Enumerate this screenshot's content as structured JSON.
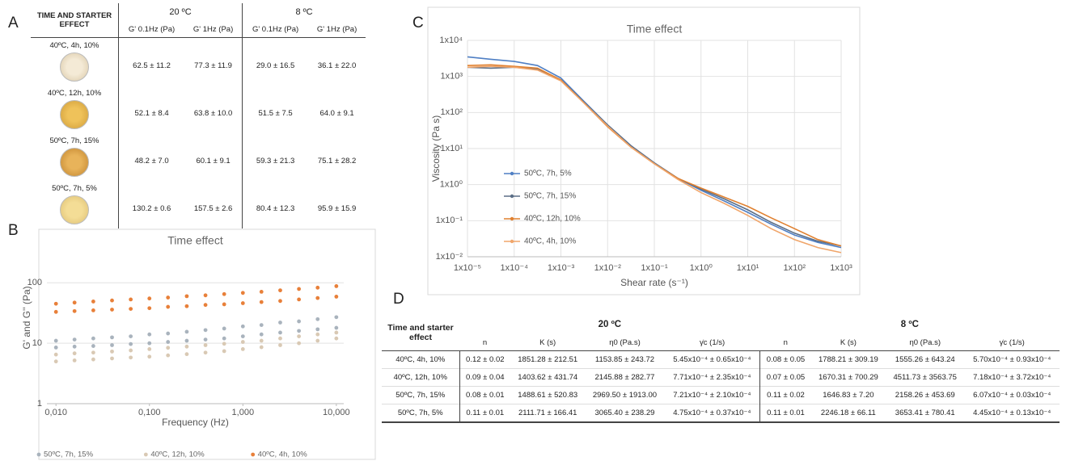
{
  "panels": [
    "A",
    "B",
    "C",
    "D"
  ],
  "table_a": {
    "header": "TIME AND STARTER EFFECT",
    "groups": [
      "20 ºC",
      "8 ºC"
    ],
    "columns": [
      "G' 0.1Hz (Pa)",
      "G' 1Hz (Pa)",
      "G' 0.1Hz (Pa)",
      "G' 1Hz (Pa)"
    ],
    "rows": [
      {
        "label": "40ºC, 4h, 10%",
        "cells": [
          "62.5 ± 11.2",
          "77.3 ± 11.9",
          "29.0 ± 16.5",
          "36.1 ± 22.0"
        ]
      },
      {
        "label": "40ºC, 12h, 10%",
        "cells": [
          "52.1 ± 8.4",
          "63.8 ± 10.0",
          "51.5 ± 7.5",
          "64.0 ± 9.1"
        ]
      },
      {
        "label": "50ºC, 7h, 15%",
        "cells": [
          "48.2 ± 7.0",
          "60.1 ± 9.1",
          "59.3 ± 21.3",
          "75.1 ± 28.2"
        ]
      },
      {
        "label": "50ºC, 7h, 5%",
        "cells": [
          "130.2 ± 0.6",
          "157.5 ± 2.6",
          "80.4 ± 12.3",
          "95.9 ± 15.9"
        ]
      }
    ]
  },
  "table_d": {
    "header": "Time and starter effect",
    "groups": [
      "20 ºC",
      "8 ºC"
    ],
    "columns": [
      "n",
      "K (s)",
      "η0 (Pa.s)",
      "γ̇c (1/s)",
      "n",
      "K (s)",
      "η0 (Pa.s)",
      "γ̇c (1/s)"
    ],
    "rows": [
      {
        "label": "40ºC, 4h, 10%",
        "cells": [
          "0.12 ± 0.02",
          "1851.28 ± 212.51",
          "1153.85 ± 243.72",
          "5.45x10⁻⁴ ± 0.65x10⁻⁴",
          "0.08 ± 0.05",
          "1788.21 ± 309.19",
          "1555.26 ± 643.24",
          "5.70x10⁻⁴ ± 0.93x10⁻⁴"
        ]
      },
      {
        "label": "40ºC, 12h, 10%",
        "cells": [
          "0.09 ± 0.04",
          "1403.62 ± 431.74",
          "2145.88 ± 282.77",
          "7.71x10⁻⁴ ± 2.35x10⁻⁴",
          "0.07 ± 0.05",
          "1670.31 ± 700.29",
          "4511.73 ± 3563.75",
          "7.18x10⁻⁴ ± 3.72x10⁻⁴"
        ]
      },
      {
        "label": "50ºC, 7h, 15%",
        "cells": [
          "0.08 ± 0.01",
          "1488.61 ± 520.83",
          "2969.50 ± 1913.00",
          "7.21x10⁻⁴ ± 2.10x10⁻⁴",
          "0.11 ± 0.02",
          "1646.83 ± 7.20",
          "2158.26 ± 453.69",
          "6.07x10⁻⁴ ± 0.03x10⁻⁴"
        ]
      },
      {
        "label": "50ºC, 7h, 5%",
        "cells": [
          "0.11 ± 0.01",
          "2111.71 ± 166.41",
          "3065.40 ± 238.29",
          "4.75x10⁻⁴ ± 0.37x10⁻⁴",
          "0.11 ± 0.01",
          "2246.18 ± 66.11",
          "3653.41 ± 780.41",
          "4.45x10⁻⁴ ± 0.13x10⁻⁴"
        ]
      }
    ]
  },
  "chart_data": [
    {
      "type": "scatter",
      "title": "Time effect",
      "x_label": "Frequency (Hz)",
      "y_label": "G' and G'' (Pa)",
      "log_x": true,
      "log_y": true,
      "grid": true,
      "legend": "bottom",
      "xlim": [
        0.008,
        12
      ],
      "ylim": [
        1,
        700
      ],
      "xticks": [
        {
          "value": 0.01,
          "label": "0,010"
        },
        {
          "value": 0.1,
          "label": "0,100"
        },
        {
          "value": 1,
          "label": "1,000"
        },
        {
          "value": 10,
          "label": "10,000"
        }
      ],
      "yticks": [
        1,
        10,
        100
      ],
      "x": [
        0.01,
        0.0158,
        0.0251,
        0.0398,
        0.0631,
        0.1,
        0.158,
        0.251,
        0.398,
        0.631,
        1,
        1.58,
        2.51,
        3.98,
        6.31,
        10
      ],
      "series": [
        {
          "name": "50ºC, 7h, 15%",
          "color": "#a9b3bd",
          "values": [
            11,
            11.5,
            12,
            12.5,
            13,
            14,
            14.5,
            15.5,
            16.5,
            17.5,
            19,
            20,
            22,
            23,
            25,
            27
          ],
          "values2": [
            8.5,
            8.8,
            9,
            9.3,
            9.7,
            10,
            10.5,
            11,
            11.5,
            12,
            13,
            14,
            15,
            16,
            17,
            18
          ]
        },
        {
          "name": "40ºC, 12h, 10%",
          "color": "#d9c9b4",
          "values": [
            6.5,
            6.8,
            7,
            7.3,
            7.6,
            8,
            8.4,
            8.8,
            9.3,
            9.8,
            10.5,
            11,
            12,
            13,
            14,
            15
          ],
          "values2": [
            5,
            5.2,
            5.4,
            5.6,
            5.8,
            6,
            6.3,
            6.6,
            7,
            7.4,
            8,
            8.6,
            9.3,
            10,
            11,
            12
          ]
        },
        {
          "name": "40ºC, 4h, 10%",
          "color": "#e8803a",
          "values": [
            45,
            47,
            49,
            51,
            53,
            55,
            57,
            60,
            62,
            65,
            68,
            71,
            75,
            79,
            83,
            88
          ],
          "values2": [
            33,
            34,
            35,
            36,
            37,
            38,
            40,
            41,
            43,
            44,
            46,
            48,
            50,
            53,
            56,
            59
          ]
        }
      ]
    },
    {
      "type": "line",
      "title": "Time effect",
      "x_label": "Shear rate (s⁻¹)",
      "y_label": "Viscosity (Pa s)",
      "log_x": true,
      "log_y": true,
      "grid": true,
      "legend": "left",
      "xlim": [
        1e-05,
        1000
      ],
      "ylim": [
        0.01,
        10000
      ],
      "xticks": [
        {
          "value": 1e-05,
          "label": "1x10⁻⁵"
        },
        {
          "value": 0.0001,
          "label": "1x10⁻⁴"
        },
        {
          "value": 0.001,
          "label": "1x10⁻³"
        },
        {
          "value": 0.01,
          "label": "1x10⁻²"
        },
        {
          "value": 0.1,
          "label": "1x10⁻¹"
        },
        {
          "value": 1,
          "label": "1x10⁰"
        },
        {
          "value": 10,
          "label": "1x10¹"
        },
        {
          "value": 100,
          "label": "1x10²"
        },
        {
          "value": 1000,
          "label": "1x10³"
        }
      ],
      "yticks": [
        {
          "value": 0.01,
          "label": "1x10⁻²"
        },
        {
          "value": 0.1,
          "label": "1x10⁻¹"
        },
        {
          "value": 1,
          "label": "1x10⁰"
        },
        {
          "value": 10,
          "label": "1x10¹"
        },
        {
          "value": 100,
          "label": "1x10²"
        },
        {
          "value": 1000,
          "label": "1x10³"
        },
        {
          "value": 10000,
          "label": "1x10⁴"
        }
      ],
      "x": [
        1e-05,
        3.16e-05,
        0.0001,
        0.000316,
        0.001,
        0.00316,
        0.01,
        0.0316,
        0.1,
        0.316,
        1,
        3.16,
        10,
        31.6,
        100,
        316,
        1000
      ],
      "series": [
        {
          "name": "50ºC, 7h, 5%",
          "color": "#4f7fc4",
          "values": [
            3500,
            3000,
            2600,
            2000,
            900,
            200,
            45,
            12,
            4,
            1.5,
            0.7,
            0.35,
            0.17,
            0.08,
            0.04,
            0.025,
            0.018
          ]
        },
        {
          "name": "50ºC, 7h, 15%",
          "color": "#5b6e86",
          "values": [
            1800,
            1700,
            1800,
            1600,
            800,
            190,
            45,
            12,
            4,
            1.5,
            0.75,
            0.4,
            0.2,
            0.09,
            0.045,
            0.027,
            0.02
          ]
        },
        {
          "name": "40ºC, 12h, 10%",
          "color": "#e0802f",
          "values": [
            2000,
            2100,
            1900,
            1700,
            800,
            180,
            40,
            11,
            3.8,
            1.5,
            0.8,
            0.45,
            0.25,
            0.12,
            0.06,
            0.03,
            0.02
          ]
        },
        {
          "name": "40ºC, 4h, 10%",
          "color": "#f0a56a",
          "values": [
            1800,
            1900,
            1800,
            1500,
            750,
            180,
            42,
            11,
            3.8,
            1.4,
            0.6,
            0.3,
            0.14,
            0.06,
            0.03,
            0.018,
            0.013
          ]
        }
      ]
    }
  ]
}
